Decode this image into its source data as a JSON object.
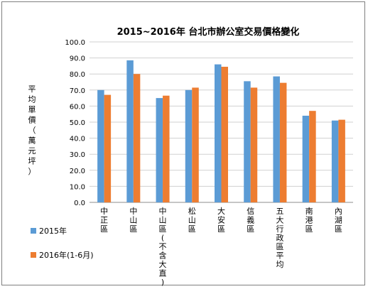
{
  "chart_data": {
    "type": "bar",
    "title": "2015~2016年 台北市辦公室交易價格變化",
    "ylabel": "平均單價（萬元/坪）",
    "ylabel_chars": [
      "平",
      "均",
      "單",
      "價",
      "（",
      "萬",
      "元",
      "坪",
      "）"
    ],
    "ylim": [
      0,
      100
    ],
    "yticks": [
      "0.0",
      "10.0",
      "20.0",
      "30.0",
      "40.0",
      "50.0",
      "60.0",
      "70.0",
      "80.0",
      "90.0",
      "100.0"
    ],
    "grid": true,
    "legend_position": "bottom-left",
    "categories": [
      "中正區",
      "中山區",
      "中山區(不含大直)",
      "松山區",
      "大安區",
      "信義區",
      "五大行政區平均",
      "南港區",
      "內湖區"
    ],
    "series": [
      {
        "name": "2015年",
        "color": "#5b9bd5",
        "values": [
          70.0,
          88.5,
          65.0,
          70.0,
          86.0,
          75.5,
          78.5,
          54.0,
          51.0
        ]
      },
      {
        "name": "2016年(1-6月)",
        "color": "#ed7d31",
        "values": [
          67.0,
          80.0,
          66.5,
          71.5,
          84.5,
          71.5,
          74.5,
          57.0,
          51.5
        ]
      }
    ]
  }
}
